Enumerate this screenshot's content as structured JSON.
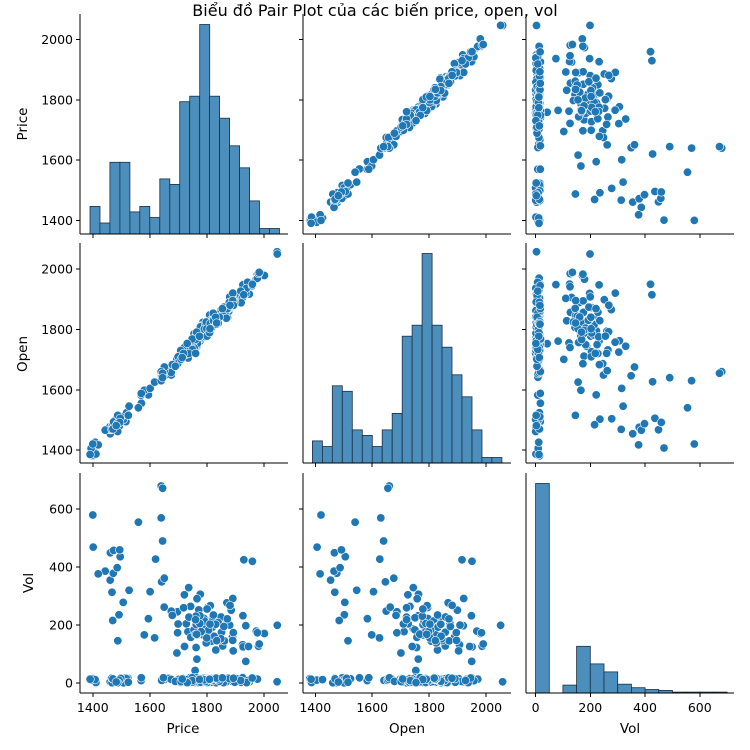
{
  "chart_data": {
    "type": "scatter",
    "title": "Biểu đồ Pair Plot của các biến price, open, vol",
    "variables": [
      "Price",
      "Open",
      "Vol"
    ],
    "colors": {
      "points": "#1f77b4",
      "edge": "#ffffff",
      "hist_fill": "#4c8fbd",
      "hist_edge": "#1b2f45"
    },
    "axes": {
      "price": {
        "range": [
          1355,
          2085
        ],
        "ticks": [
          "1400",
          "1600",
          "1800",
          "2000"
        ]
      },
      "open": {
        "range": [
          1357,
          2087
        ],
        "ticks": [
          "1400",
          "1600",
          "1800",
          "2000"
        ]
      },
      "vol": {
        "range": [
          -35,
          725
        ],
        "ticks": [
          "0",
          "200",
          "400",
          "600"
        ]
      }
    },
    "hist_price": {
      "edges": [
        1390,
        1425,
        1460,
        1495,
        1530,
        1565,
        1600,
        1635,
        1670,
        1705,
        1740,
        1775,
        1810,
        1845,
        1880,
        1915,
        1950,
        1985,
        2020,
        2055
      ],
      "counts": [
        5,
        2,
        13,
        13,
        4,
        5,
        3,
        10,
        9,
        24,
        25,
        38,
        25,
        21,
        16,
        12,
        6,
        1,
        1
      ]
    },
    "hist_open": {
      "edges": [
        1390,
        1425,
        1460,
        1495,
        1530,
        1565,
        1600,
        1635,
        1670,
        1705,
        1740,
        1775,
        1810,
        1845,
        1880,
        1915,
        1950,
        1985,
        2020,
        2055
      ],
      "counts": [
        4,
        3,
        14,
        13,
        6,
        5,
        3,
        6,
        9,
        23,
        25,
        38,
        25,
        21,
        16,
        12,
        6,
        1,
        1
      ]
    },
    "hist_vol": {
      "edges": [
        0,
        50,
        100,
        150,
        200,
        250,
        300,
        350,
        400,
        450,
        500,
        550,
        600,
        650,
        700
      ],
      "counts": [
        238,
        0,
        9,
        53,
        33,
        24,
        10,
        6,
        4,
        3,
        1,
        1,
        1,
        1
      ]
    },
    "grid": false,
    "legend": "none"
  }
}
